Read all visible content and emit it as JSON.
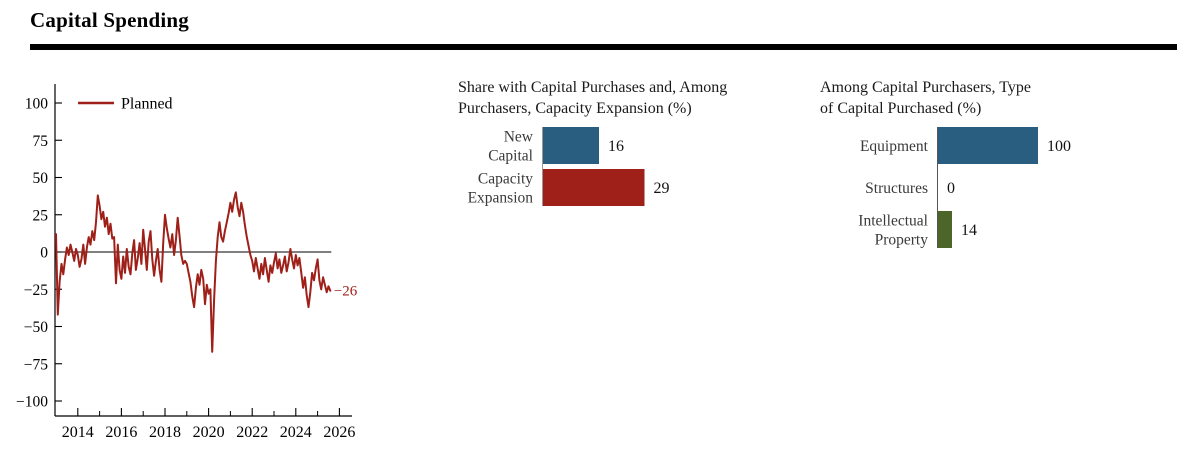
{
  "header": {
    "title": "Capital Spending"
  },
  "colors": {
    "red": "#9e2019",
    "blue": "#2a5e81",
    "green": "#4c6529",
    "axis": "#000000",
    "category_label": "#3a3a3a",
    "value_label": "#111111",
    "title_text": "#1a1a1a",
    "baseline_gray": "#999999",
    "baseline_dark": "#555555"
  },
  "chart_data": [
    {
      "type": "line",
      "name": "planned-capital-spending-index",
      "legend": "Planned",
      "color": "#9e2019",
      "ylim": [
        -100,
        100
      ],
      "xlim": [
        2013,
        2026.7
      ],
      "y_ticks": [
        100,
        75,
        50,
        25,
        0,
        -25,
        -50,
        -75,
        -100
      ],
      "y_tick_labels": [
        "100",
        "75",
        "50",
        "25",
        "0",
        "−25",
        "−50",
        "−75",
        "−100"
      ],
      "x_labeled_years": [
        2014,
        2016,
        2018,
        2020,
        2022,
        2024,
        2026
      ],
      "x_tick_labels": [
        "2014",
        "2016",
        "2018",
        "2020",
        "2022",
        "2024",
        "2026"
      ],
      "x_minor_years": [
        2015,
        2017,
        2019,
        2021,
        2023,
        2025
      ],
      "end_label": "−26",
      "end_value": -26,
      "grid": false,
      "legend_position": "top-left-inside",
      "series": [
        {
          "name": "Planned",
          "x_start": 2013.0,
          "x_step": 0.0833333,
          "values": [
            12,
            -42,
            -20,
            -8,
            -15,
            -5,
            3,
            -2,
            5,
            0,
            -6,
            2,
            -2,
            -10,
            -5,
            5,
            -8,
            3,
            10,
            5,
            14,
            8,
            20,
            38,
            31,
            22,
            27,
            17,
            23,
            12,
            19,
            9,
            10,
            -21,
            5,
            -12,
            -18,
            -3,
            -14,
            2,
            -10,
            -15,
            -1,
            8,
            -12,
            -4,
            6,
            -8,
            15,
            2,
            -12,
            7,
            14,
            -5,
            -16,
            -6,
            2,
            -12,
            -20,
            6,
            25,
            16,
            9,
            3,
            12,
            -2,
            8,
            23,
            11,
            -2,
            -8,
            -6,
            -8,
            -14,
            -20,
            -30,
            -37,
            -24,
            -15,
            -22,
            -12,
            -18,
            -35,
            -22,
            -28,
            -25,
            -67,
            -32,
            -6,
            10,
            20,
            10,
            7,
            14,
            20,
            26,
            33,
            27,
            35,
            40,
            30,
            24,
            33,
            27,
            18,
            10,
            4,
            -2,
            -6,
            -13,
            -4,
            -11,
            -18,
            -8,
            -15,
            -4,
            -12,
            -20,
            -9,
            -14,
            -7,
            -1,
            -11,
            -5,
            -14,
            -9,
            -3,
            -13,
            -7,
            2,
            -5,
            -11,
            -2,
            -9,
            -4,
            -14,
            -24,
            -17,
            -29,
            -37,
            -27,
            -14,
            -19,
            -11,
            -5,
            -19,
            -25,
            -17,
            -22,
            -27,
            -23,
            -26
          ]
        }
      ]
    },
    {
      "type": "bar",
      "orientation": "horizontal",
      "title": "Share with Capital Purchases and, Among Purchasers, Capacity Expansion (%)",
      "title_lines": [
        "Share with Capital Purchases and, Among",
        "Purchasers, Capacity Expansion (%)"
      ],
      "categories": [
        "New Capital",
        "Capacity Expansion"
      ],
      "category_lines": [
        [
          "New",
          "Capital"
        ],
        [
          "Capacity",
          "Expansion"
        ]
      ],
      "values": [
        16,
        29
      ],
      "value_labels": [
        "16",
        "29"
      ],
      "colors": [
        "#2a5e81",
        "#9e2019"
      ]
    },
    {
      "type": "bar",
      "orientation": "horizontal",
      "title": "Among Capital Purchasers, Type of Capital Purchased (%)",
      "title_lines": [
        "Among Capital Purchasers, Type",
        "of Capital Purchased (%)"
      ],
      "categories": [
        "Equipment",
        "Structures",
        "Intellectual Property"
      ],
      "category_lines": [
        [
          "Equipment"
        ],
        [
          "Structures"
        ],
        [
          "Intellectual",
          "Property"
        ]
      ],
      "values": [
        100,
        0,
        14
      ],
      "value_labels": [
        "100",
        "0",
        "14"
      ],
      "colors": [
        "#2a5e81",
        "#2a5e81",
        "#4c6529"
      ]
    }
  ]
}
